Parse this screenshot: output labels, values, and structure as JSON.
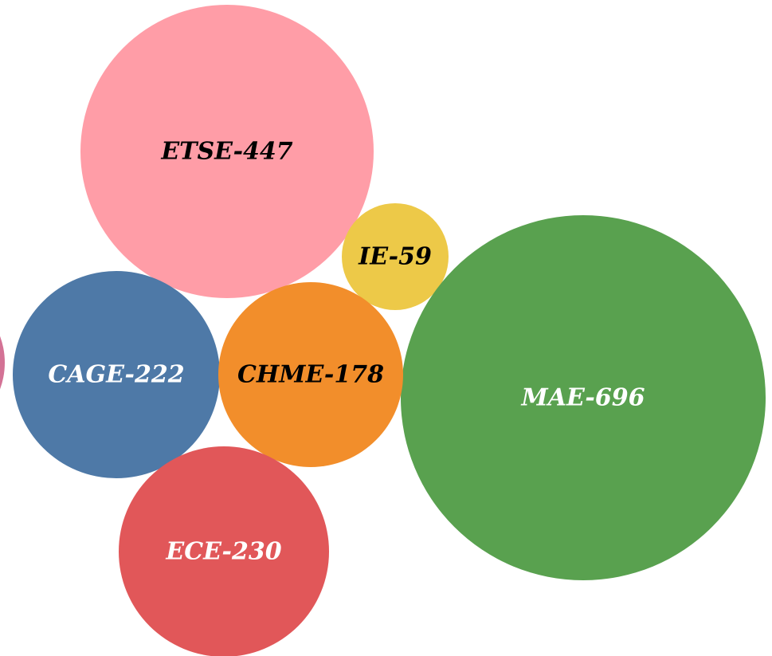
{
  "chart_data": {
    "type": "bubble",
    "items": [
      {
        "name": "ETSE-447",
        "label": "ETSE-447",
        "value": 447,
        "color": "#FF9DA7",
        "text_color": "#000000"
      },
      {
        "name": "IE-59",
        "label": "IE-59",
        "value": 59,
        "color": "#EDC948",
        "text_color": "#000000"
      },
      {
        "name": "MAE-696",
        "label": "MAE-696",
        "value": 696,
        "color": "#59A14F",
        "text_color": "#FFFFFF"
      },
      {
        "name": "CAGE-222",
        "label": "CAGE-222",
        "value": 222,
        "color": "#4E79A7",
        "text_color": "#FFFFFF"
      },
      {
        "name": "CHME-178",
        "label": "CHME-178",
        "value": 178,
        "color": "#F28E2B",
        "text_color": "#000000"
      },
      {
        "name": "ECE-230",
        "label": "ECE-230",
        "value": 230,
        "color": "#E15759",
        "text_color": "#FFFFFF"
      },
      {
        "name": "",
        "label": "",
        "value": null,
        "color": "#D37295",
        "text_color": "#FFFFFF",
        "partially_visible": true
      }
    ]
  }
}
